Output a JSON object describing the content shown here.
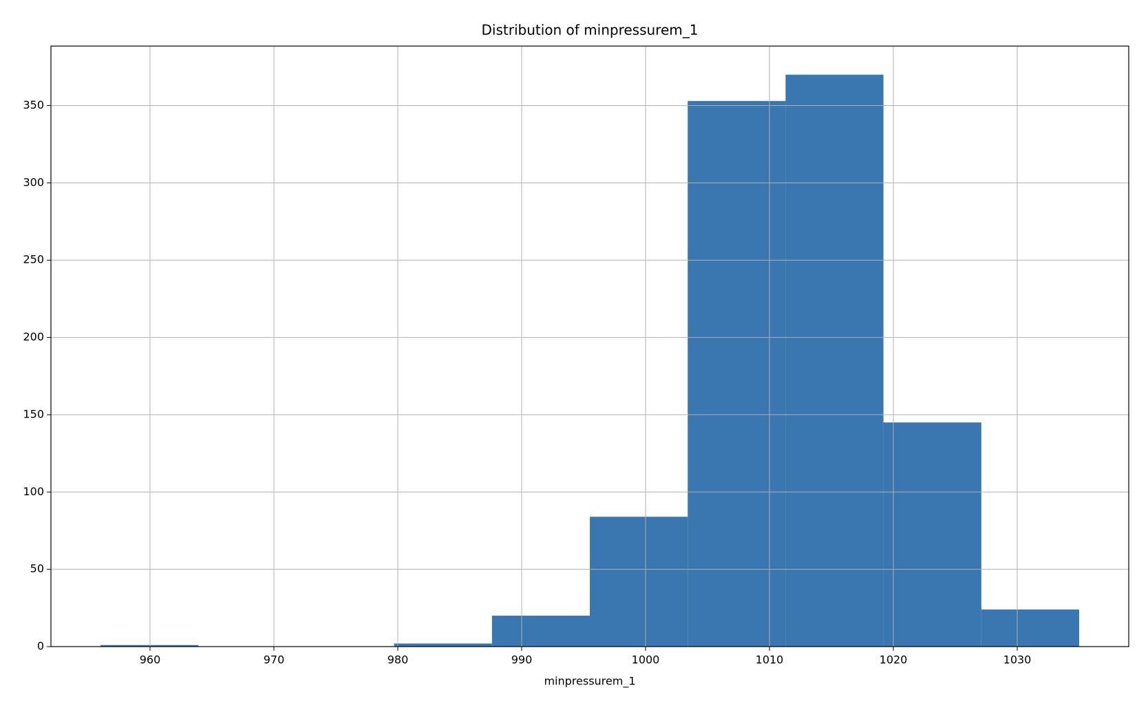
{
  "chart_data": {
    "type": "histogram",
    "title": "Distribution of minpressurem_1",
    "xlabel": "minpressurem_1",
    "bins": [
      956,
      963.9,
      971.8,
      979.7,
      987.6,
      995.5,
      1003.4,
      1011.3,
      1019.2,
      1027.1,
      1035
    ],
    "values": [
      1,
      0,
      0,
      2,
      20,
      84,
      353,
      370,
      145,
      24
    ],
    "color": "#3a76af",
    "xlim": [
      952,
      1039
    ],
    "xticks": [
      960,
      970,
      980,
      990,
      1000,
      1010,
      1020,
      1030
    ],
    "ylim": [
      0,
      388.5
    ],
    "yticks": [
      0,
      50,
      100,
      150,
      200,
      250,
      300,
      350
    ],
    "grid": true
  }
}
